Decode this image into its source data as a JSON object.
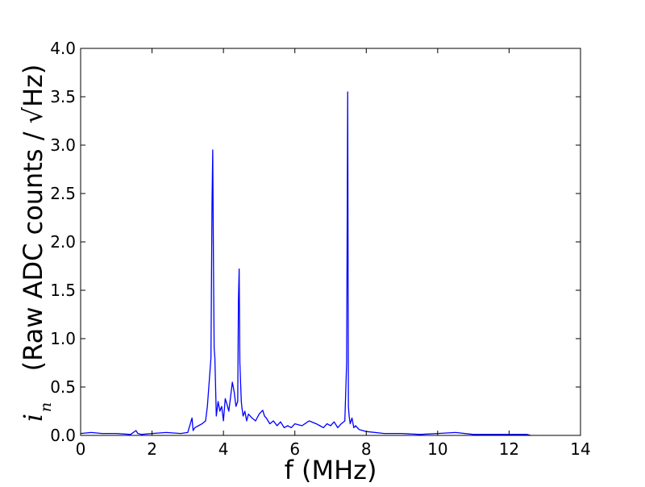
{
  "chart_data": {
    "type": "line",
    "title": "",
    "xlabel": "f (MHz)",
    "ylabel": "(Raw ADC counts / √Hz)",
    "ylabel_symbol": "i",
    "ylabel_symbol_subscript": "n",
    "xlim": [
      0,
      14
    ],
    "ylim": [
      0,
      4.0
    ],
    "grid": false,
    "legend": "none",
    "line_color": "#0000ff",
    "x_ticks": [
      0,
      2,
      4,
      6,
      8,
      10,
      12,
      14
    ],
    "x_tick_labels": [
      "0",
      "2",
      "4",
      "6",
      "8",
      "10",
      "12",
      "14"
    ],
    "y_ticks": [
      0,
      0.5,
      1.0,
      1.5,
      2.0,
      2.5,
      3.0,
      3.5,
      4.0
    ],
    "y_tick_labels": [
      "0.0",
      "0.5",
      "1.0",
      "1.5",
      "2.0",
      "2.5",
      "3.0",
      "3.5",
      "4.0"
    ],
    "series": [
      {
        "x": [
          0.0,
          0.3,
          0.6,
          1.0,
          1.4,
          1.55,
          1.6,
          1.7,
          2.0,
          2.4,
          2.8,
          3.0,
          3.12,
          3.15,
          3.2,
          3.3,
          3.4,
          3.5,
          3.55,
          3.6,
          3.65,
          3.68,
          3.7,
          3.72,
          3.74,
          3.76,
          3.78,
          3.8,
          3.85,
          3.9,
          3.95,
          4.0,
          4.05,
          4.1,
          4.15,
          4.2,
          4.25,
          4.3,
          4.35,
          4.4,
          4.42,
          4.44,
          4.46,
          4.48,
          4.5,
          4.52,
          4.55,
          4.6,
          4.65,
          4.7,
          4.8,
          4.9,
          5.0,
          5.1,
          5.15,
          5.2,
          5.3,
          5.4,
          5.5,
          5.6,
          5.7,
          5.8,
          5.9,
          6.0,
          6.2,
          6.4,
          6.6,
          6.7,
          6.8,
          6.9,
          7.0,
          7.1,
          7.2,
          7.3,
          7.4,
          7.45,
          7.48,
          7.5,
          7.52,
          7.55,
          7.6,
          7.65,
          7.7,
          7.8,
          8.0,
          8.5,
          9.0,
          9.5,
          10.0,
          10.5,
          11.0,
          11.5,
          12.0,
          12.5,
          12.6
        ],
        "y": [
          0.02,
          0.03,
          0.02,
          0.02,
          0.01,
          0.05,
          0.02,
          0.01,
          0.02,
          0.03,
          0.02,
          0.03,
          0.18,
          0.05,
          0.08,
          0.1,
          0.12,
          0.15,
          0.3,
          0.55,
          0.8,
          2.4,
          2.95,
          1.8,
          0.9,
          0.8,
          0.5,
          0.2,
          0.35,
          0.25,
          0.3,
          0.15,
          0.38,
          0.32,
          0.25,
          0.4,
          0.55,
          0.45,
          0.3,
          0.35,
          1.4,
          1.72,
          0.75,
          0.55,
          0.35,
          0.28,
          0.2,
          0.25,
          0.15,
          0.22,
          0.18,
          0.15,
          0.22,
          0.26,
          0.2,
          0.18,
          0.12,
          0.15,
          0.1,
          0.14,
          0.08,
          0.1,
          0.08,
          0.12,
          0.1,
          0.15,
          0.12,
          0.1,
          0.08,
          0.12,
          0.1,
          0.14,
          0.08,
          0.12,
          0.15,
          0.75,
          3.55,
          0.3,
          0.2,
          0.12,
          0.18,
          0.08,
          0.1,
          0.06,
          0.04,
          0.02,
          0.02,
          0.01,
          0.02,
          0.03,
          0.01,
          0.01,
          0.01,
          0.01,
          0.0
        ]
      }
    ]
  }
}
